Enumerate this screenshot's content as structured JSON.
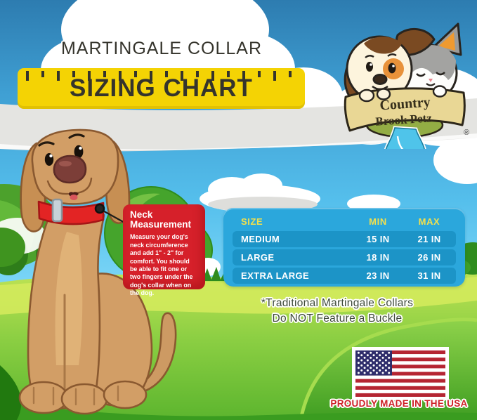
{
  "header": {
    "kicker": "MARTINGALE COLLAR",
    "title": "SIZING CHART"
  },
  "logo": {
    "line1": "Country",
    "line2": "Brook Petz",
    "registered": "®"
  },
  "callout": {
    "title": "Neck\nMeasurement",
    "body": "Measure your dog's neck circumference and add 1\" - 2\" for comfort. You should be able to fit one or two fingers under the dog's collar when on the dog."
  },
  "size_chart": {
    "headers": [
      "SIZE",
      "MIN",
      "MAX"
    ],
    "rows": [
      {
        "size": "MEDIUM",
        "min": "15 IN",
        "max": "21 IN"
      },
      {
        "size": "LARGE",
        "min": "18 IN",
        "max": "26 IN"
      },
      {
        "size": "EXTRA LARGE",
        "min": "23 IN",
        "max": "31 IN"
      }
    ]
  },
  "chart_data": {
    "type": "table",
    "title": "SIZING CHART",
    "columns": [
      "SIZE",
      "MIN",
      "MAX"
    ],
    "rows": [
      [
        "MEDIUM",
        "15 IN",
        "21 IN"
      ],
      [
        "LARGE",
        "18 IN",
        "26 IN"
      ],
      [
        "EXTRA LARGE",
        "23 IN",
        "31 IN"
      ]
    ]
  },
  "note": {
    "line1": "*Traditional Martingale Collars",
    "line2": "Do NOT Feature a Buckle"
  },
  "footer": {
    "made_in": "PROUDLY MADE IN THE USA"
  },
  "colors": {
    "ruler_yellow": "#f4d304",
    "table_blue": "#2ba7dc",
    "table_row_blue": "#1c94c7",
    "table_header_yellow": "#f3e04c",
    "callout_red": "#d6202a",
    "flag_red": "#b52532",
    "flag_blue": "#2e2d6b",
    "grass_green": "#8ccf43",
    "sky_blue": "#55bfec"
  }
}
